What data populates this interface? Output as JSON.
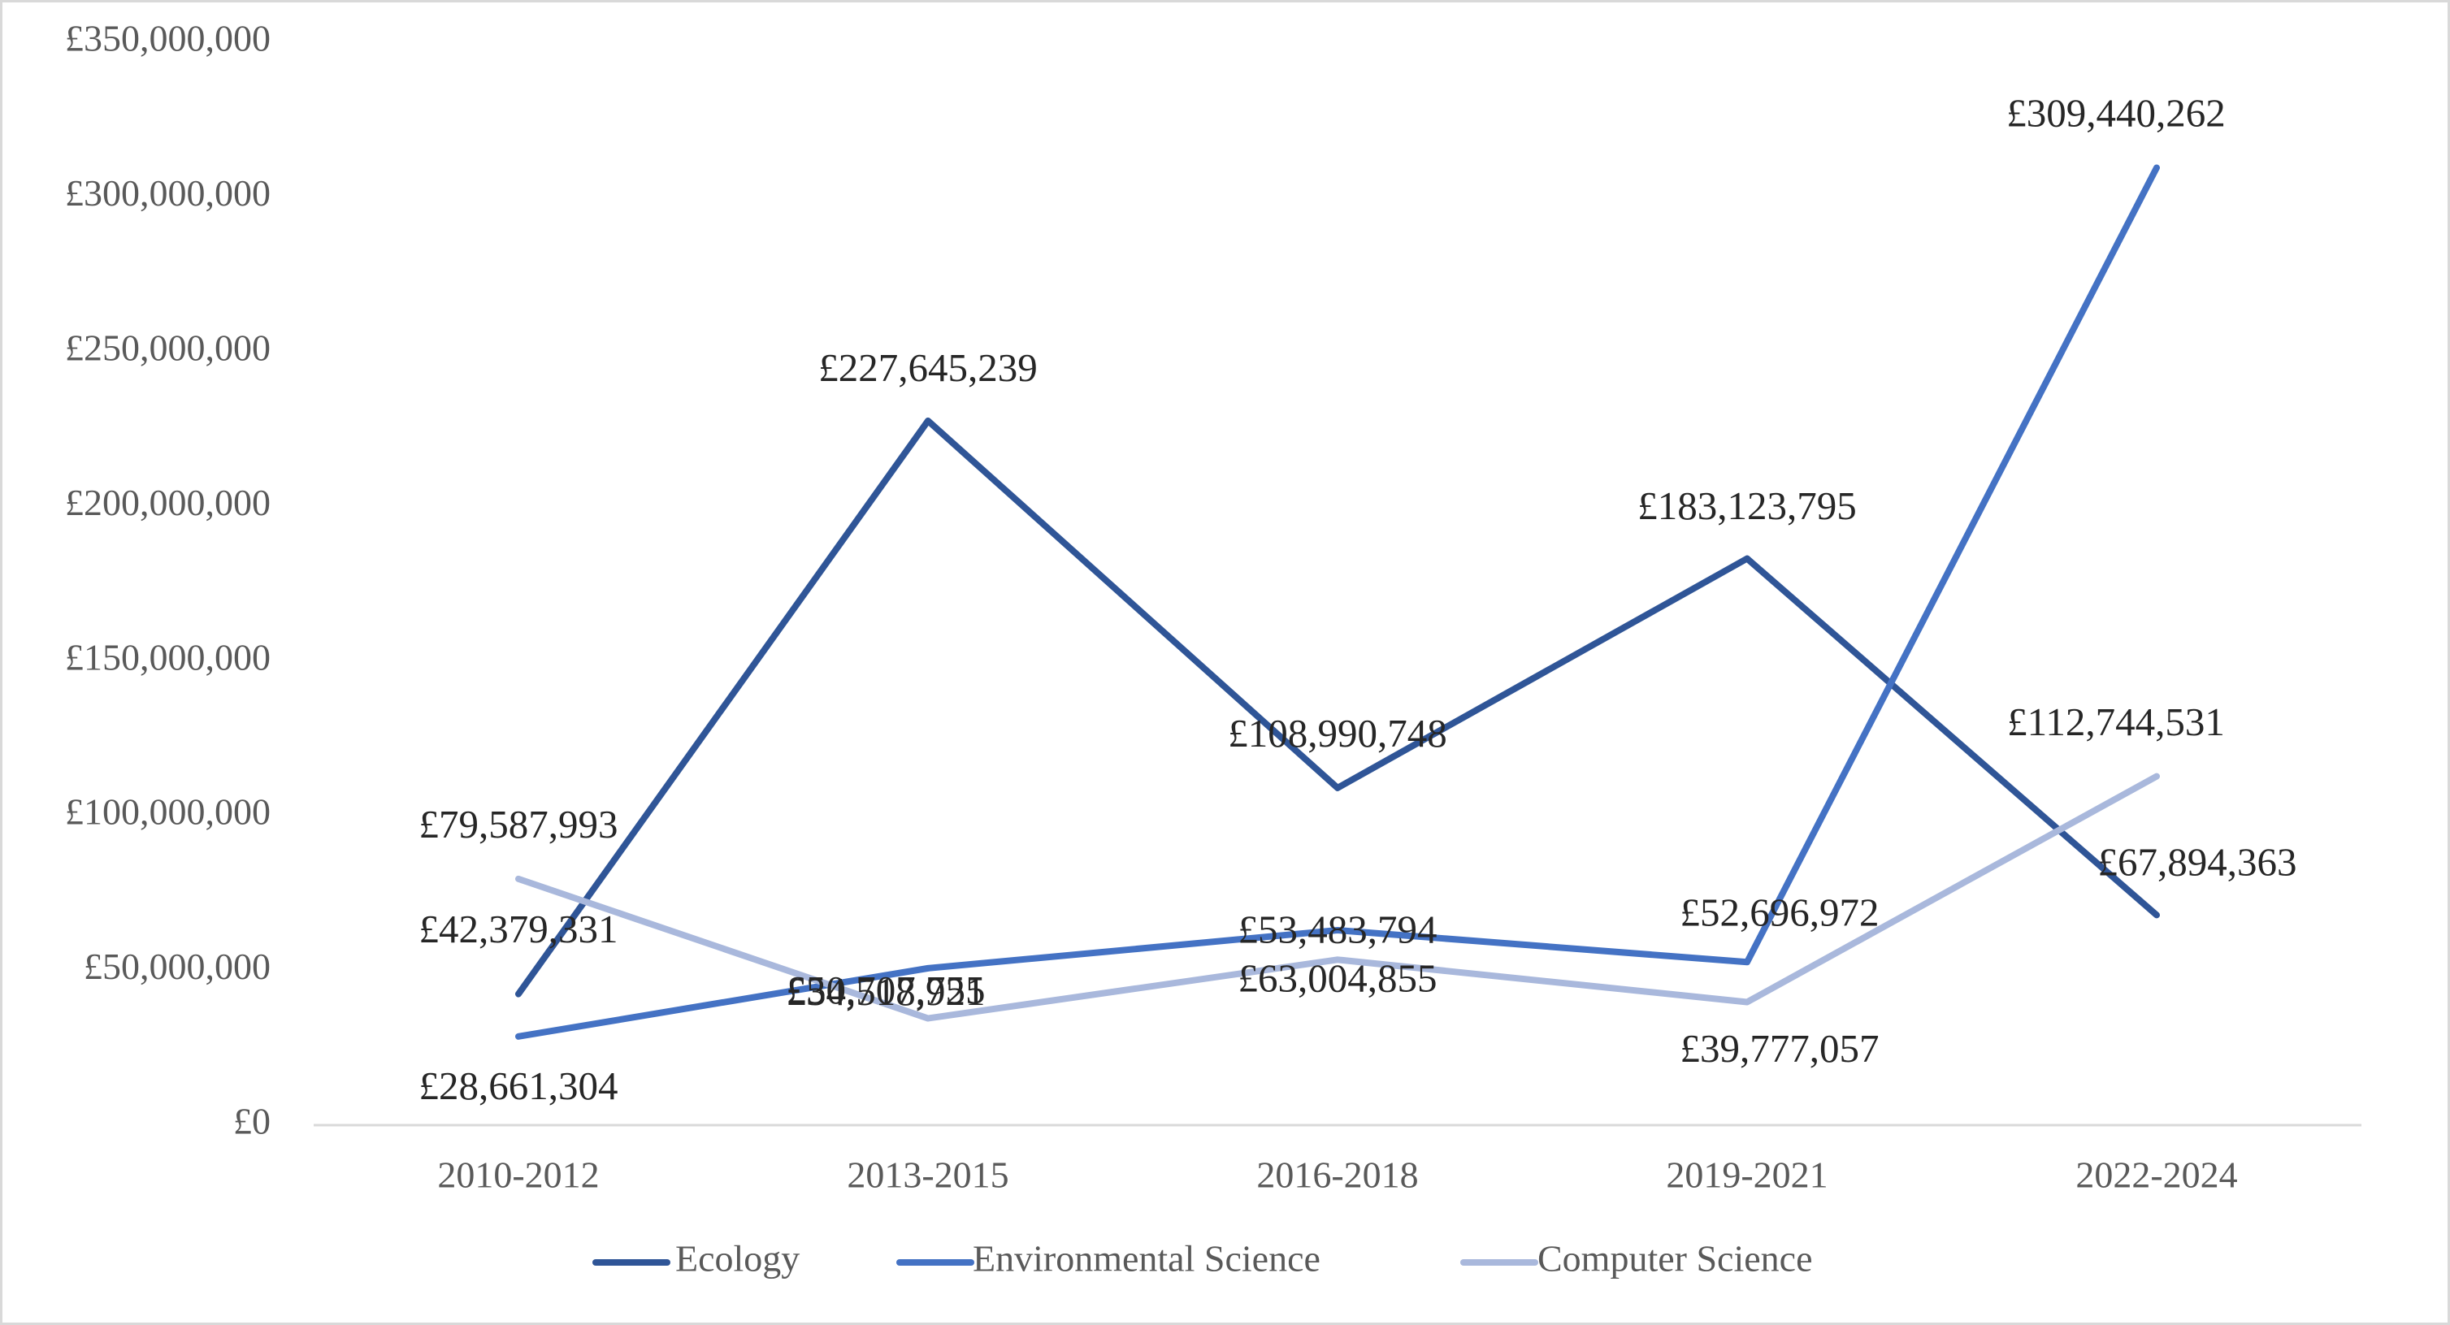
{
  "chart_data": {
    "type": "line",
    "title": "",
    "xlabel": "",
    "ylabel": "",
    "categories": [
      "2010-2012",
      "2013-2015",
      "2016-2018",
      "2019-2021",
      "2022-2024"
    ],
    "ylim": [
      0,
      350000000
    ],
    "ytick_values": [
      0,
      50000000,
      100000000,
      150000000,
      200000000,
      250000000,
      300000000,
      350000000
    ],
    "ytick_labels": [
      "£0",
      "£50,000,000",
      "£100,000,000",
      "£150,000,000",
      "£200,000,000",
      "£250,000,000",
      "£300,000,000",
      "£350,000,000"
    ],
    "grid": {
      "horizontal": false,
      "vertical": false
    },
    "legend_position": "bottom",
    "series": [
      {
        "name": "Ecology",
        "color": "#2f5597",
        "values": [
          42379331,
          227645239,
          108990748,
          183123795,
          67894363
        ],
        "labels": [
          "£42,379,331",
          "£227,645,239",
          "£108,990,748",
          "£183,123,795",
          "£67,894,363"
        ]
      },
      {
        "name": "Environmental Science",
        "color": "#4472c4",
        "values": [
          28661304,
          50707755,
          63004855,
          52696972,
          309440262
        ],
        "labels": [
          "£28,661,304",
          "£50,707,755",
          "£63,004,855",
          "£52,696,972",
          "£309,440,262"
        ]
      },
      {
        "name": "Computer Science",
        "color": "#a9b8dc",
        "values": [
          79587993,
          34518921,
          53483794,
          39777057,
          112744531
        ],
        "labels": [
          "£79,587,993",
          "£34,518,921",
          "£53,483,794",
          "£39,777,057",
          "£112,744,531"
        ]
      }
    ]
  }
}
